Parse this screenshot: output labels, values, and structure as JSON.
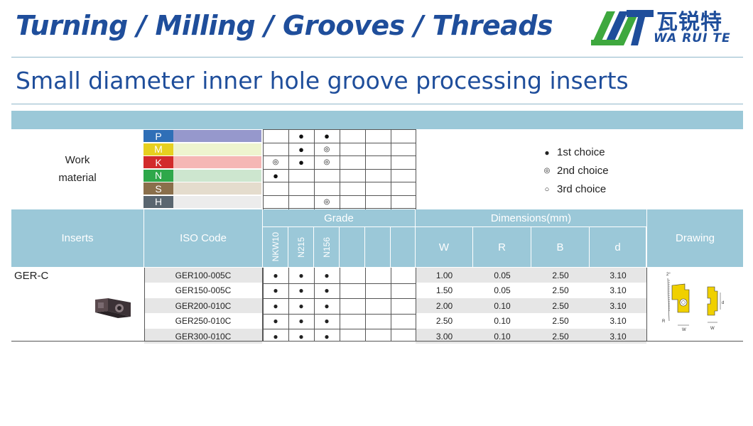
{
  "header": {
    "title": "Turning / Milling / Grooves / Threads",
    "logo_cn": "瓦锐特",
    "logo_en": "WA RUI TE"
  },
  "subtitle": "Small diameter inner hole groove processing inserts",
  "work_material": {
    "label_line1": "Work",
    "label_line2": "material",
    "rows": [
      {
        "code": "P",
        "letter_color": "#2f6fb7",
        "bar_color": "#9698cc",
        "marks": [
          "",
          "●",
          "●",
          "",
          "",
          ""
        ]
      },
      {
        "code": "M",
        "letter_color": "#e6d020",
        "bar_color": "#eef4cf",
        "marks": [
          "",
          "●",
          "◎",
          "",
          "",
          ""
        ]
      },
      {
        "code": "K",
        "letter_color": "#d22b2b",
        "bar_color": "#f5b7b5",
        "marks": [
          "◎",
          "●",
          "◎",
          "",
          "",
          ""
        ]
      },
      {
        "code": "N",
        "letter_color": "#2ea84a",
        "bar_color": "#cde6cf",
        "marks": [
          "●",
          "",
          "",
          "",
          "",
          ""
        ]
      },
      {
        "code": "S",
        "letter_color": "#8a6f4b",
        "bar_color": "#e4dccd",
        "marks": [
          "",
          "",
          "",
          "",
          "",
          ""
        ]
      },
      {
        "code": "H",
        "letter_color": "#5a6670",
        "bar_color": "#ececec",
        "marks": [
          "",
          "",
          "◎",
          "",
          "",
          ""
        ]
      }
    ]
  },
  "legend": [
    {
      "symbol": "●",
      "label": "1st choice"
    },
    {
      "symbol": "◎",
      "label": "2nd choice"
    },
    {
      "symbol": "○",
      "label": "3rd choice"
    }
  ],
  "table_header": {
    "inserts": "Inserts",
    "iso_code": "ISO Code",
    "grade": "Grade",
    "grades": [
      "NKW10",
      "N215",
      "N156",
      "",
      "",
      ""
    ],
    "dimensions": "Dimensions(mm)",
    "dim_cols": [
      "W",
      "R",
      "B",
      "d"
    ],
    "drawing": "Drawing"
  },
  "product": {
    "series": "GER-C",
    "rows": [
      {
        "iso": "GER100-005C",
        "grades": [
          "●",
          "●",
          "●",
          "",
          "",
          ""
        ],
        "W": "1.00",
        "R": "0.05",
        "B": "2.50",
        "d": "3.10"
      },
      {
        "iso": "GER150-005C",
        "grades": [
          "●",
          "●",
          "●",
          "",
          "",
          ""
        ],
        "W": "1.50",
        "R": "0.05",
        "B": "2.50",
        "d": "3.10"
      },
      {
        "iso": "GER200-010C",
        "grades": [
          "●",
          "●",
          "●",
          "",
          "",
          ""
        ],
        "W": "2.00",
        "R": "0.10",
        "B": "2.50",
        "d": "3.10"
      },
      {
        "iso": "GER250-010C",
        "grades": [
          "●",
          "●",
          "●",
          "",
          "",
          ""
        ],
        "W": "2.50",
        "R": "0.10",
        "B": "2.50",
        "d": "3.10"
      },
      {
        "iso": "GER300-010C",
        "grades": [
          "●",
          "●",
          "●",
          "",
          "",
          ""
        ],
        "W": "3.00",
        "R": "0.10",
        "B": "2.50",
        "d": "3.10"
      }
    ]
  },
  "drawing_labels": {
    "angle": "2°",
    "r": "R",
    "w1": "W",
    "w2": "W",
    "d": "d"
  },
  "colors": {
    "brand_blue": "#1f4e9b",
    "header_band": "#9bc8d8",
    "insert_yellow": "#f0d000"
  }
}
